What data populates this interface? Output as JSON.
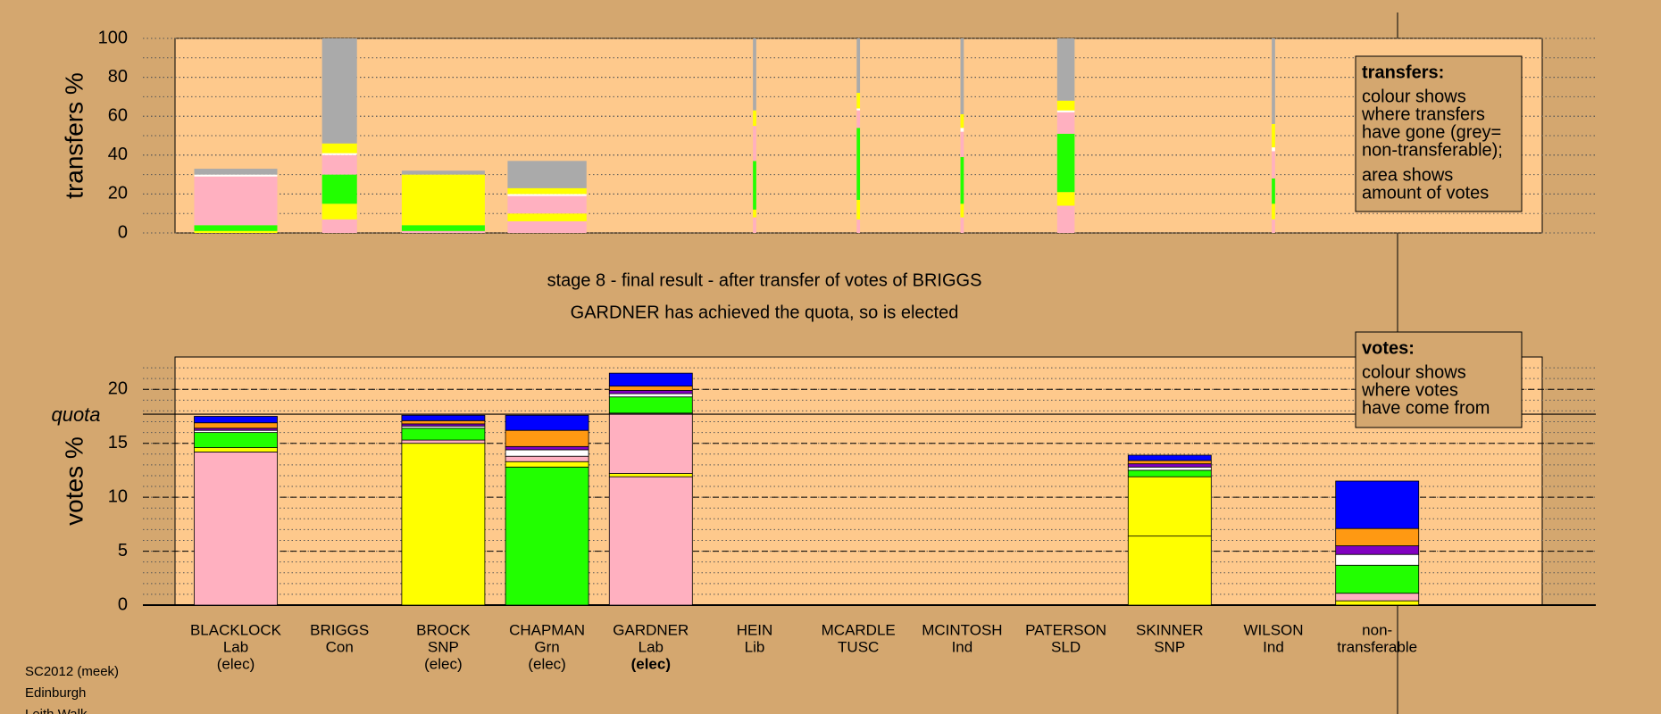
{
  "chart_data": [
    {
      "type": "stacked-bar",
      "ylabel": "transfers %",
      "ylim": [
        0,
        100
      ],
      "yticks": [
        0,
        20,
        40,
        60,
        80,
        100
      ],
      "minor_grid_step": 10,
      "grid": true,
      "amounts": [
        1,
        0.42,
        1,
        0.95,
        0,
        0.04,
        0.04,
        0.04,
        0.21,
        0,
        0.04
      ],
      "series": [
        {
          "color": "#ffb0c0",
          "values": [
            0,
            7,
            1,
            6,
            0,
            8,
            7,
            8,
            14,
            0,
            7
          ]
        },
        {
          "color": "#ffff00",
          "values": [
            1,
            8,
            0,
            4,
            0,
            4,
            10,
            7,
            7,
            0,
            8
          ]
        },
        {
          "color": "#22ff00",
          "values": [
            3,
            15,
            3,
            0,
            0,
            25,
            37,
            24,
            30,
            0,
            13
          ]
        },
        {
          "color": "#ffb0c0",
          "values": [
            25,
            10,
            0,
            9,
            0,
            18,
            9,
            13,
            11,
            0,
            14
          ]
        },
        {
          "color": "#ffffff",
          "values": [
            1,
            1,
            0,
            1,
            0,
            0,
            1,
            2,
            1,
            0,
            2
          ]
        },
        {
          "color": "#ffff00",
          "values": [
            0,
            5,
            26,
            3,
            0,
            8,
            8,
            7,
            5,
            0,
            12
          ]
        },
        {
          "color": "#aaaaaa",
          "values": [
            3,
            54,
            2,
            14,
            0,
            37,
            28,
            39,
            32,
            0,
            44
          ]
        }
      ],
      "legend_title": "transfers:",
      "legend_lines": [
        "colour shows",
        "where transfers",
        "have gone (grey=",
        "non-transferable);",
        "area shows",
        "amount of votes"
      ]
    },
    {
      "type": "stacked-bar",
      "title": "stage 8 - final result - after transfer of votes of BRIGGS",
      "subtitle": "GARDNER has achieved the quota, so is elected",
      "ylabel": "votes %",
      "ylim": [
        0,
        23
      ],
      "yticks": [
        0,
        5,
        10,
        15,
        20
      ],
      "minor_grid_step": 1,
      "grid": true,
      "quota": 17.7,
      "quota_label": "quota",
      "categories": [
        [
          "BLACKLOCK",
          "Lab",
          "(elec)"
        ],
        [
          "BRIGGS",
          "Con"
        ],
        [
          "BROCK",
          "SNP",
          "(elec)"
        ],
        [
          "CHAPMAN",
          "Grn",
          "(elec)"
        ],
        [
          "GARDNER",
          "Lab",
          "(elec)"
        ],
        [
          "HEIN",
          "Lib"
        ],
        [
          "MCARDLE",
          "TUSC"
        ],
        [
          "MCINTOSH",
          "Ind"
        ],
        [
          "PATERSON",
          "SLD"
        ],
        [
          "SKINNER",
          "SNP"
        ],
        [
          "WILSON",
          "Ind"
        ],
        [
          "non-",
          "transferable"
        ]
      ],
      "series": [
        {
          "color": "#ffb0c0",
          "values": [
            14.2,
            0,
            0,
            0,
            11.9,
            0,
            0,
            0,
            0,
            0,
            0,
            0
          ]
        },
        {
          "color": "#ffff00",
          "values": [
            0,
            0,
            15.0,
            0,
            0,
            0,
            0,
            0,
            0,
            6.4,
            0,
            0
          ]
        },
        {
          "color": "#22ff00",
          "values": [
            0,
            0,
            0,
            12.8,
            0,
            0,
            0,
            0,
            0,
            0,
            0,
            0
          ]
        },
        {
          "color": "#ffff00",
          "values": [
            0.4,
            0,
            0,
            0.5,
            0.3,
            0,
            0,
            0,
            0,
            5.5,
            0,
            0.4
          ]
        },
        {
          "color": "#ffb0c0",
          "values": [
            0,
            0,
            0.3,
            0.5,
            5.6,
            0,
            0,
            0,
            0,
            0,
            0,
            0.7
          ]
        },
        {
          "color": "#22ff00",
          "values": [
            1.4,
            0,
            1.1,
            0,
            1.5,
            0,
            0,
            0,
            0,
            0.6,
            0,
            2.6
          ]
        },
        {
          "color": "#ffffff",
          "values": [
            0.2,
            0,
            0.2,
            0.6,
            0.3,
            0,
            0,
            0,
            0,
            0.3,
            0,
            1.0
          ]
        },
        {
          "color": "#8000c0",
          "values": [
            0.2,
            0,
            0.2,
            0.3,
            0.3,
            0,
            0,
            0,
            0,
            0.3,
            0,
            0.8
          ]
        },
        {
          "color": "#ff9912",
          "values": [
            0.5,
            0,
            0.3,
            1.5,
            0.4,
            0,
            0,
            0,
            0,
            0.3,
            0,
            1.6
          ]
        },
        {
          "color": "#0000ff",
          "values": [
            0.6,
            0,
            0.5,
            1.4,
            1.2,
            0,
            0,
            0,
            0,
            0.5,
            0,
            4.4
          ]
        }
      ],
      "legend_title": "votes:",
      "legend_lines": [
        "colour shows",
        "where votes",
        "have come from"
      ]
    }
  ],
  "footer": [
    "SC2012 (meek)",
    "Edinburgh",
    "Leith Walk"
  ]
}
